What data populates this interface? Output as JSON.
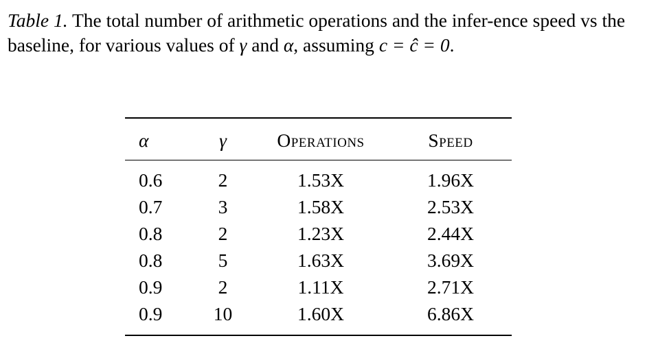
{
  "caption": {
    "label": "Table 1.",
    "text_1": " The total number of arithmetic operations and the infer-ence speed vs the baseline, for various values of ",
    "gamma": "γ",
    "text_2": " and ",
    "alpha": "α",
    "text_3": ", assuming ",
    "equation": "c = ĉ = 0",
    "text_4": "."
  },
  "table": {
    "headers": [
      "α",
      "γ",
      "Operations",
      "Speed"
    ],
    "rows": [
      [
        "0.6",
        "2",
        "1.53X",
        "1.96X"
      ],
      [
        "0.7",
        "3",
        "1.58X",
        "2.53X"
      ],
      [
        "0.8",
        "2",
        "1.23X",
        "2.44X"
      ],
      [
        "0.8",
        "5",
        "1.63X",
        "3.69X"
      ],
      [
        "0.9",
        "2",
        "1.11X",
        "2.71X"
      ],
      [
        "0.9",
        "10",
        "1.60X",
        "6.86X"
      ]
    ]
  }
}
